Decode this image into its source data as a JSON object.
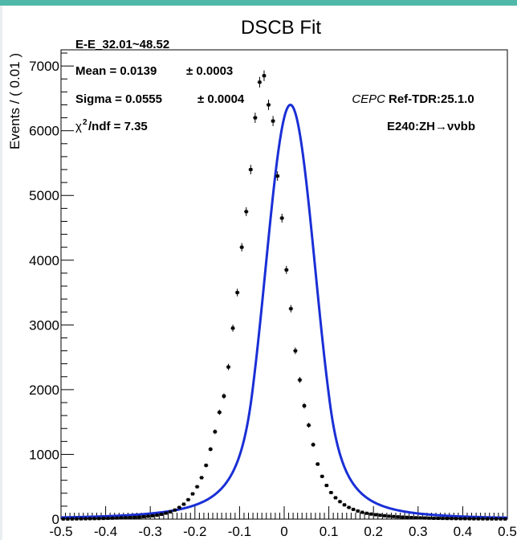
{
  "theme": {
    "accent": "#4fb8a8",
    "fit_color": "#1a2fd6",
    "point_color": "#000000"
  },
  "chart_data": {
    "type": "scatter",
    "title": "DSCB Fit",
    "xlabel": "",
    "ylabel": "Events / ( 0.01 )",
    "xlim": [
      -0.5,
      0.5
    ],
    "ylim": [
      0,
      7250
    ],
    "x_ticks": [
      "-0.5",
      "-0.4",
      "-0.3",
      "-0.2",
      "-0.1",
      "0",
      "0.1",
      "0.2",
      "0.3",
      "0.4",
      "0.5"
    ],
    "y_ticks": [
      "0",
      "1000",
      "2000",
      "3000",
      "4000",
      "5000",
      "6000",
      "7000"
    ],
    "grid": false,
    "annotations": {
      "range": "E-E_32.01~48.52",
      "mean": "Mean = 0.0139",
      "mean_err": "± 0.0003",
      "sigma": "Sigma = 0.0555",
      "sigma_err": "± 0.0004",
      "chi2_label": "χ",
      "chi2_exp": "2",
      "chi2_rest": "/ndf = 7.35",
      "experiment_italic": "CEPC",
      "experiment_ref": "Ref-TDR:25.1.0",
      "process": "E240:ZH→ννbb"
    },
    "series": [
      {
        "kind": "data",
        "x": [
          -0.495,
          -0.485,
          -0.475,
          -0.465,
          -0.455,
          -0.445,
          -0.435,
          -0.425,
          -0.415,
          -0.405,
          -0.395,
          -0.385,
          -0.375,
          -0.365,
          -0.355,
          -0.345,
          -0.335,
          -0.325,
          -0.315,
          -0.305,
          -0.295,
          -0.285,
          -0.275,
          -0.265,
          -0.255,
          -0.245,
          -0.235,
          -0.225,
          -0.215,
          -0.205,
          -0.195,
          -0.185,
          -0.175,
          -0.165,
          -0.155,
          -0.145,
          -0.135,
          -0.125,
          -0.115,
          -0.105,
          -0.095,
          -0.085,
          -0.075,
          -0.065,
          -0.055,
          -0.045,
          -0.035,
          -0.025,
          -0.015,
          -0.005,
          0.005,
          0.015,
          0.025,
          0.035,
          0.045,
          0.055,
          0.065,
          0.075,
          0.085,
          0.095,
          0.105,
          0.115,
          0.125,
          0.135,
          0.145,
          0.155,
          0.165,
          0.175,
          0.185,
          0.195,
          0.205,
          0.215,
          0.225,
          0.235,
          0.245,
          0.255,
          0.265,
          0.275,
          0.285,
          0.295,
          0.305,
          0.315,
          0.325,
          0.335,
          0.345,
          0.355,
          0.365,
          0.375,
          0.385,
          0.395,
          0.405,
          0.415,
          0.425,
          0.435,
          0.445,
          0.455,
          0.465,
          0.475,
          0.485,
          0.495
        ],
        "y": [
          2,
          2,
          3,
          4,
          5,
          6,
          7,
          8,
          9,
          11,
          13,
          15,
          17,
          20,
          22,
          25,
          28,
          32,
          38,
          44,
          52,
          62,
          75,
          92,
          112,
          140,
          180,
          230,
          300,
          390,
          500,
          640,
          830,
          1080,
          1350,
          1650,
          1900,
          2350,
          2950,
          3500,
          4200,
          4750,
          5400,
          6200,
          6750,
          6850,
          6400,
          6150,
          5300,
          4650,
          3850,
          3250,
          2600,
          2150,
          1750,
          1450,
          1150,
          850,
          660,
          520,
          410,
          330,
          270,
          220,
          180,
          150,
          125,
          105,
          90,
          78,
          68,
          60,
          52,
          45,
          40,
          35,
          31,
          27,
          24,
          21,
          19,
          17,
          15,
          13,
          12,
          11,
          10,
          9,
          8,
          7,
          7,
          6,
          5,
          5,
          4,
          4,
          3,
          3,
          3,
          2
        ]
      },
      {
        "kind": "fit",
        "model": "double-sided crystal ball",
        "mean": 0.0139,
        "sigma": 0.0555,
        "peak": 6400
      }
    ]
  }
}
